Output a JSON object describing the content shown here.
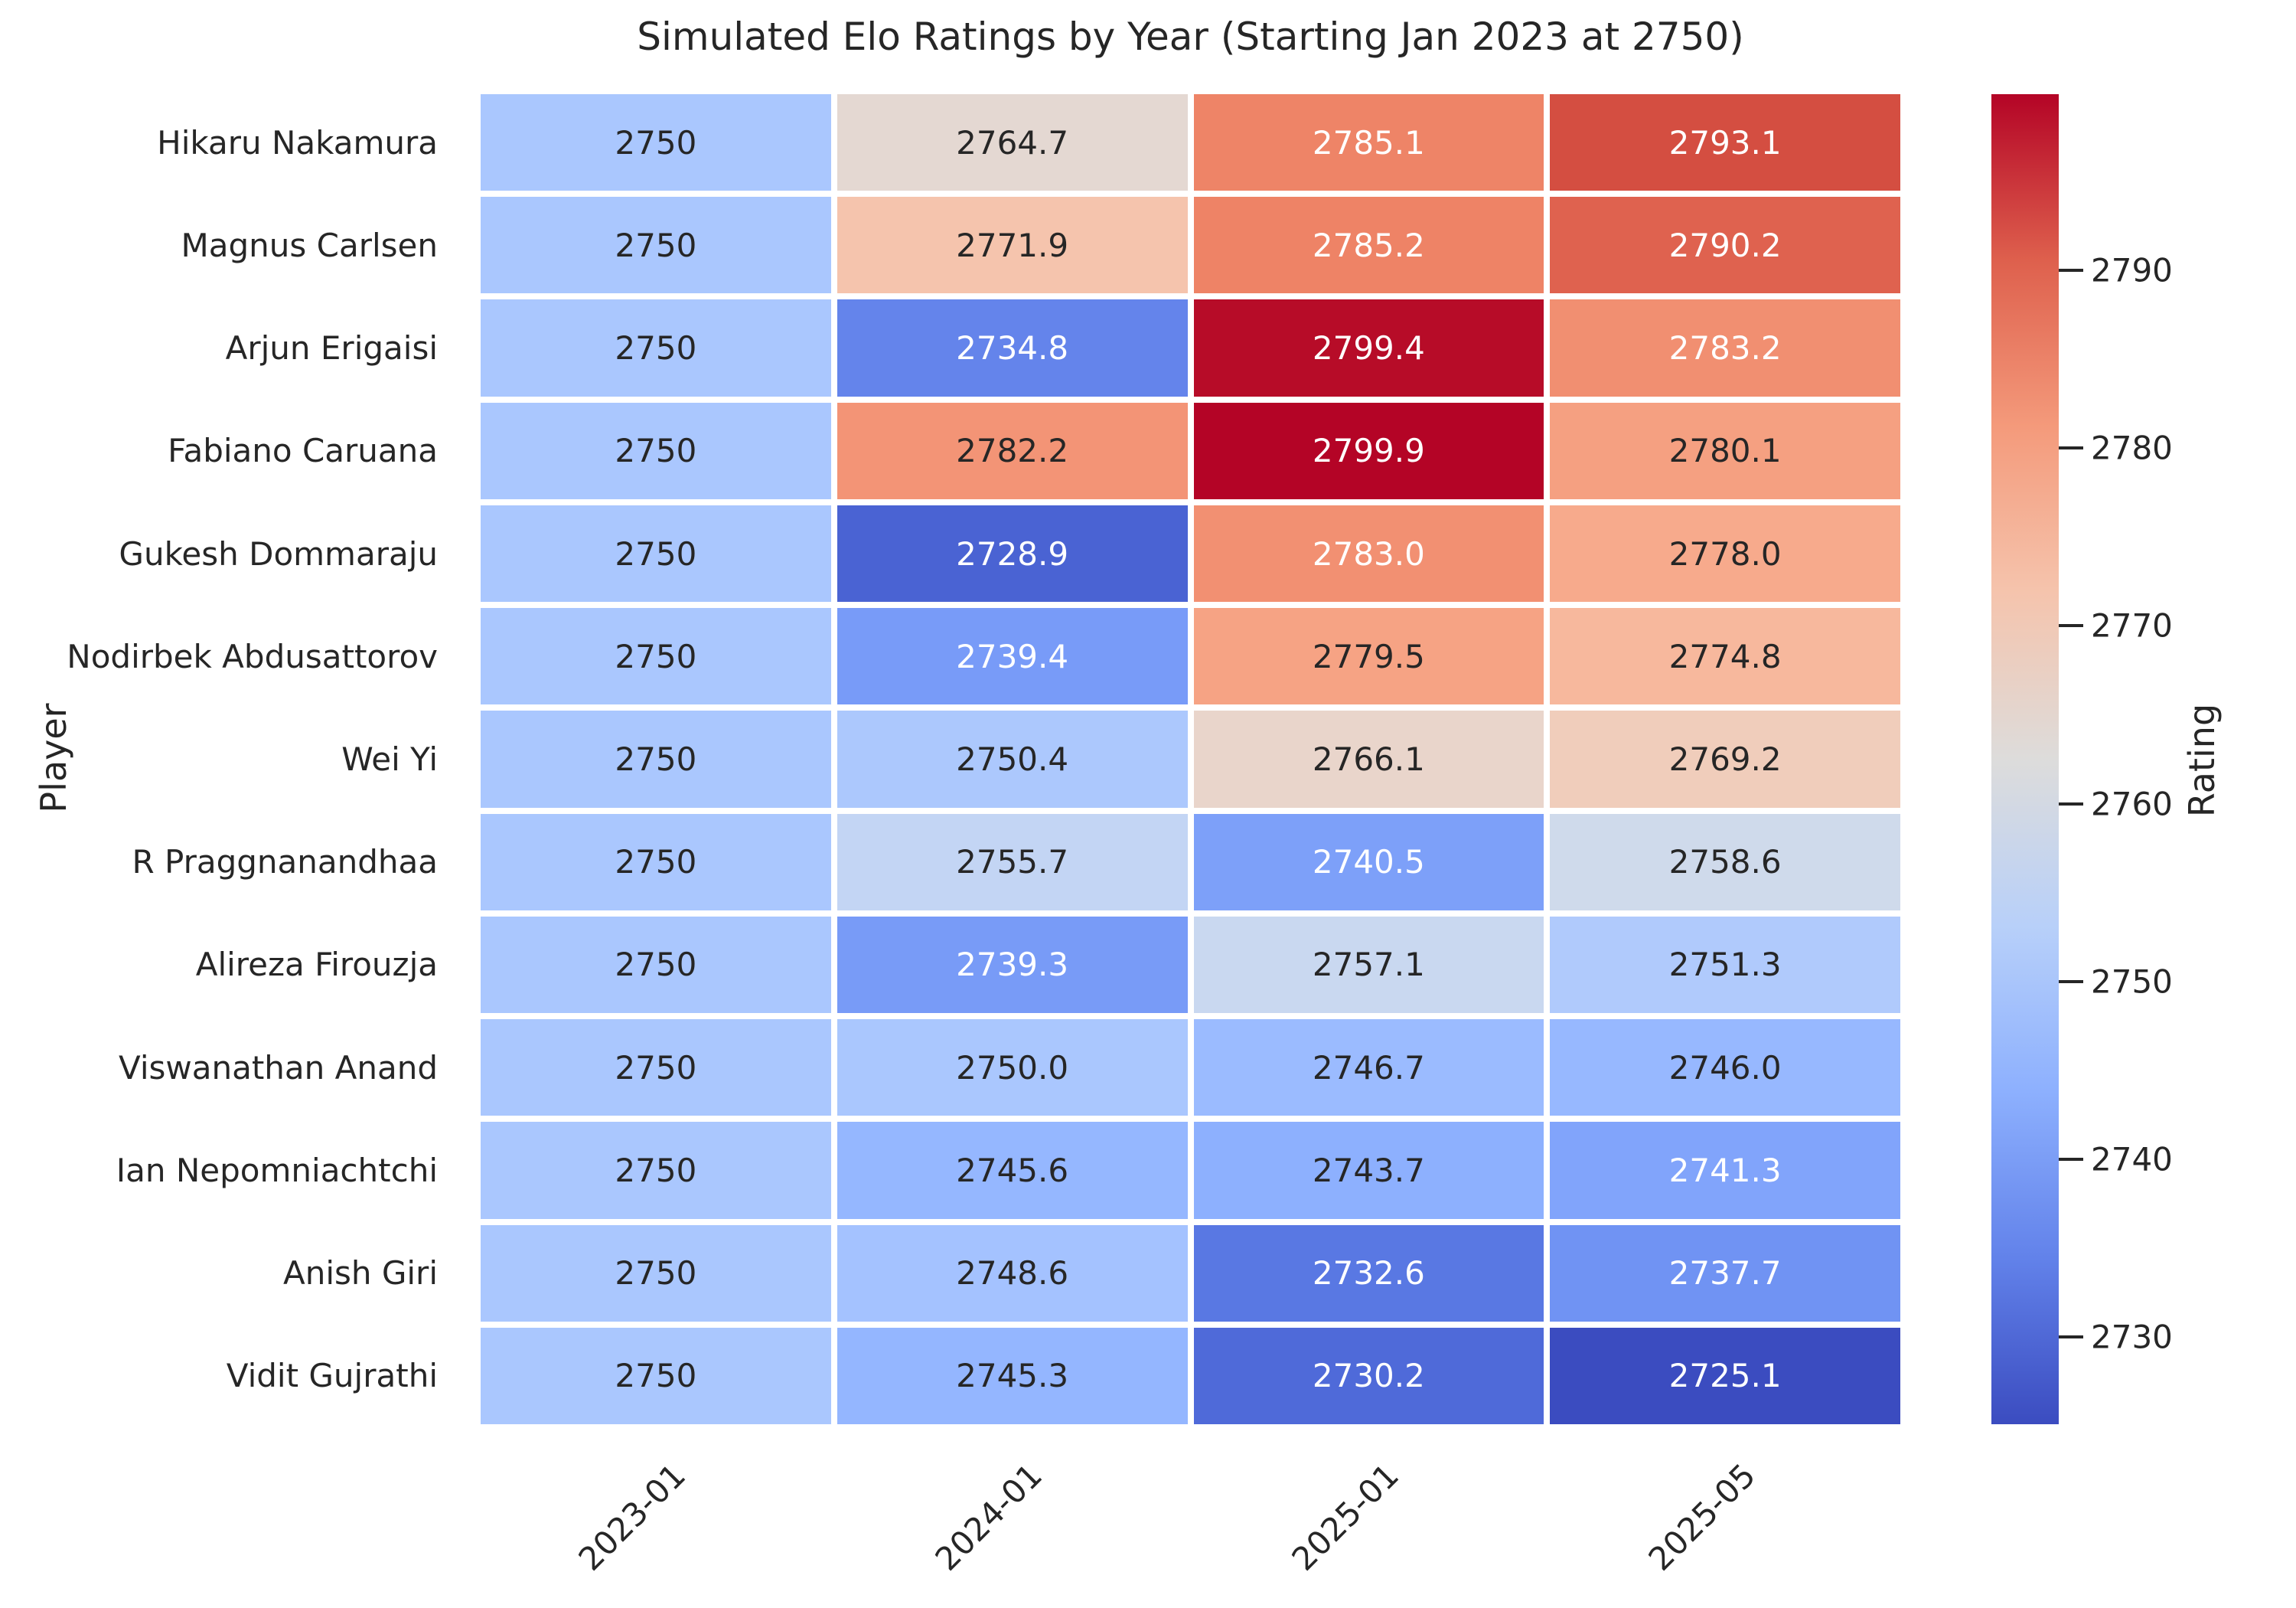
{
  "chart_data": {
    "type": "heatmap",
    "title": "Simulated Elo Ratings by Year (Starting Jan 2023 at 2750)",
    "xlabel": "",
    "ylabel": "Player",
    "x_ticklabels": [
      "2023-01",
      "2024-01",
      "2025-01",
      "2025-05"
    ],
    "annotation_colors": {
      "dark": "#262626",
      "light": "#ffffff"
    },
    "rows": [
      {
        "player": "Hikaru Nakamura",
        "values": [
          2750,
          2764.7,
          2785.1,
          2793.1
        ],
        "display": [
          "2750",
          "2764.7",
          "2785.1",
          "2793.1"
        ],
        "bg": [
          "#AAC7FE",
          "#E4D8D2",
          "#EE8467",
          "#D44E41"
        ],
        "fg": [
          "dark",
          "dark",
          "light",
          "light"
        ]
      },
      {
        "player": "Magnus Carlsen",
        "values": [
          2750,
          2771.9,
          2785.2,
          2790.2
        ],
        "display": [
          "2750",
          "2771.9",
          "2785.2",
          "2790.2"
        ],
        "bg": [
          "#AAC7FE",
          "#F5C4AD",
          "#EE8366",
          "#DF624F"
        ],
        "fg": [
          "dark",
          "dark",
          "light",
          "light"
        ]
      },
      {
        "player": "Arjun Erigaisi",
        "values": [
          2750,
          2734.8,
          2799.4,
          2783.2
        ],
        "display": [
          "2750",
          "2734.8",
          "2799.4",
          "2783.2"
        ],
        "bg": [
          "#AAC7FE",
          "#6484EB",
          "#B70C28",
          "#F18F71"
        ],
        "fg": [
          "dark",
          "light",
          "light",
          "light"
        ]
      },
      {
        "player": "Fabiano Caruana",
        "values": [
          2750,
          2782.2,
          2799.9,
          2780.1
        ],
        "display": [
          "2750",
          "2782.2",
          "2799.9",
          "2780.1"
        ],
        "bg": [
          "#AAC7FE",
          "#F39476",
          "#B40426",
          "#F5A081"
        ],
        "fg": [
          "dark",
          "dark",
          "light",
          "dark"
        ]
      },
      {
        "player": "Gukesh Dommaraju",
        "values": [
          2750,
          2728.9,
          2783.0,
          2778.0
        ],
        "display": [
          "2750",
          "2728.9",
          "2783.0",
          "2778.0"
        ],
        "bg": [
          "#AAC7FE",
          "#4A63D3",
          "#F29072",
          "#F7AA8C"
        ],
        "fg": [
          "dark",
          "light",
          "light",
          "dark"
        ]
      },
      {
        "player": "Nodirbek Abdusattorov",
        "values": [
          2750,
          2739.4,
          2779.5,
          2774.8
        ],
        "display": [
          "2750",
          "2739.4",
          "2779.5",
          "2774.8"
        ],
        "bg": [
          "#AAC7FE",
          "#789BF8",
          "#F6A384",
          "#F7B89D"
        ],
        "fg": [
          "dark",
          "light",
          "dark",
          "dark"
        ]
      },
      {
        "player": "Wei Yi",
        "values": [
          2750,
          2750.4,
          2766.1,
          2769.2
        ],
        "display": [
          "2750",
          "2750.4",
          "2766.1",
          "2769.2"
        ],
        "bg": [
          "#AAC7FE",
          "#ACC8FD",
          "#E9D5CB",
          "#F0CDBB"
        ],
        "fg": [
          "dark",
          "dark",
          "dark",
          "dark"
        ]
      },
      {
        "player": "R Praggnanandhaa",
        "values": [
          2750,
          2755.7,
          2740.5,
          2758.6
        ],
        "display": [
          "2750",
          "2755.7",
          "2740.5",
          "2758.6"
        ],
        "bg": [
          "#AAC7FE",
          "#C3D5F4",
          "#7DA0F9",
          "#CFDAEB"
        ],
        "fg": [
          "dark",
          "dark",
          "light",
          "dark"
        ]
      },
      {
        "player": "Alireza Firouzja",
        "values": [
          2750,
          2739.3,
          2757.1,
          2751.3
        ],
        "display": [
          "2750",
          "2739.3",
          "2757.1",
          "2751.3"
        ],
        "bg": [
          "#AAC7FE",
          "#789BF7",
          "#C9D8F0",
          "#B0CAFC"
        ],
        "fg": [
          "dark",
          "light",
          "dark",
          "dark"
        ]
      },
      {
        "player": "Viswanathan Anand",
        "values": [
          2750,
          2750.0,
          2746.7,
          2746.0
        ],
        "display": [
          "2750",
          "2750.0",
          "2746.7",
          "2746.0"
        ],
        "bg": [
          "#AAC7FE",
          "#AAC7FE",
          "#9BBBFF",
          "#97B8FF"
        ],
        "fg": [
          "dark",
          "dark",
          "dark",
          "dark"
        ]
      },
      {
        "player": "Ian Nepomniachtchi",
        "values": [
          2750,
          2745.6,
          2743.7,
          2741.3
        ],
        "display": [
          "2750",
          "2745.6",
          "2743.7",
          "2741.3"
        ],
        "bg": [
          "#AAC7FE",
          "#95B7FF",
          "#8DB0FE",
          "#81A4FB"
        ],
        "fg": [
          "dark",
          "dark",
          "dark",
          "light"
        ]
      },
      {
        "player": "Anish Giri",
        "values": [
          2750,
          2748.6,
          2732.6,
          2737.7
        ],
        "display": [
          "2750",
          "2748.6",
          "2732.6",
          "2737.7"
        ],
        "bg": [
          "#AAC7FE",
          "#A4C2FF",
          "#5978E3",
          "#7093F3"
        ],
        "fg": [
          "dark",
          "dark",
          "light",
          "light"
        ]
      },
      {
        "player": "Vidit Gujrathi",
        "values": [
          2750,
          2745.3,
          2730.2,
          2725.1
        ],
        "display": [
          "2750",
          "2745.3",
          "2730.2",
          "2725.1"
        ],
        "bg": [
          "#AAC7FE",
          "#94B6FF",
          "#4F6AD9",
          "#3B4CC0"
        ],
        "fg": [
          "dark",
          "dark",
          "light",
          "light"
        ]
      }
    ],
    "colorbar": {
      "label": "Rating",
      "vmin": 2725.1,
      "vmax": 2799.9,
      "ticks": [
        2790,
        2780,
        2770,
        2760,
        2750,
        2740,
        2730
      ],
      "gradient_top_to_bottom": [
        "#B40426",
        "#DE604D",
        "#F49A7B",
        "#F5C4AD",
        "#DDDCDB",
        "#B8D0F9",
        "#8DB0FE",
        "#6282EA",
        "#3B4CC0"
      ]
    },
    "layout_hints": {
      "grid": "off",
      "annotations": "on",
      "colormap": "coolwarm",
      "legend_position": "right-colorbar"
    }
  }
}
